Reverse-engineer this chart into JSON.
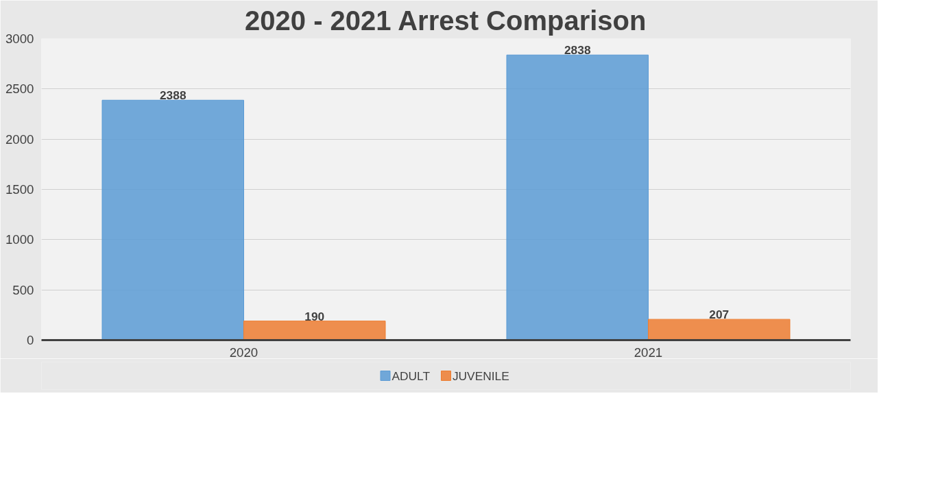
{
  "chart_data": {
    "type": "bar",
    "title": "2020 - 2021 Arrest Comparison",
    "categories": [
      "2020",
      "2021"
    ],
    "series": [
      {
        "name": "ADULT",
        "color": "#5b9bd5",
        "values": [
          2388,
          2838
        ]
      },
      {
        "name": "JUVENILE",
        "color": "#ed7d31",
        "values": [
          190,
          207
        ]
      }
    ],
    "ylim": [
      0,
      3000
    ],
    "yticks": [
      0,
      500,
      1000,
      1500,
      2000,
      2500,
      3000
    ],
    "grid": "y",
    "legend": "bottom",
    "data_labels": true
  }
}
